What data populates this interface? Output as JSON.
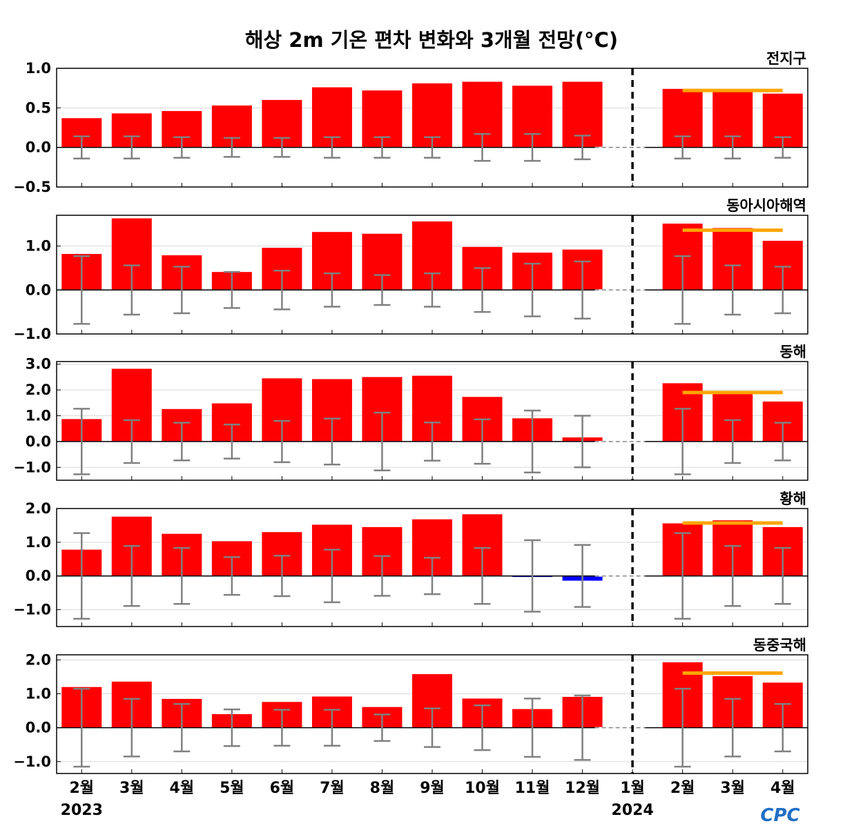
{
  "title": "해상 2m 기온 편차 변화와 3개월 전망(°C)",
  "logo": "CPC",
  "colors": {
    "positive": "#ff0000",
    "negative": "#0000ff",
    "forecast_line": "#ffa500",
    "error_bar": "#808080"
  },
  "chart_data": [
    {
      "type": "bar",
      "title": "전지구",
      "categories": [
        "2월",
        "3월",
        "4월",
        "5월",
        "6월",
        "7월",
        "8월",
        "9월",
        "10월",
        "11월",
        "12월",
        "1월",
        "2월",
        "3월",
        "4월"
      ],
      "values": [
        0.37,
        0.43,
        0.46,
        0.53,
        0.6,
        0.76,
        0.72,
        0.81,
        0.83,
        0.78,
        0.83,
        0.0,
        0.74,
        0.73,
        0.68
      ],
      "error_ranges": [
        0.14,
        0.14,
        0.13,
        0.12,
        0.12,
        0.13,
        0.13,
        0.13,
        0.17,
        0.17,
        0.15,
        0.0,
        0.14,
        0.14,
        0.13
      ],
      "forecast_mean": 0.72,
      "ylim": [
        -0.5,
        1.0
      ],
      "yticks": [
        -0.5,
        0.0,
        0.5,
        1.0
      ],
      "ytick_labels": [
        "−0.5",
        "0.0",
        "0.5",
        "1.0"
      ]
    },
    {
      "type": "bar",
      "title": "동아시아해역",
      "categories": [
        "2월",
        "3월",
        "4월",
        "5월",
        "6월",
        "7월",
        "8월",
        "9월",
        "10월",
        "11월",
        "12월",
        "1월",
        "2월",
        "3월",
        "4월"
      ],
      "values": [
        0.82,
        1.63,
        0.79,
        0.41,
        0.96,
        1.32,
        1.28,
        1.56,
        0.98,
        0.85,
        0.92,
        0.0,
        1.51,
        1.41,
        1.12
      ],
      "error_ranges": [
        0.77,
        0.56,
        0.53,
        0.41,
        0.44,
        0.38,
        0.34,
        0.38,
        0.5,
        0.6,
        0.65,
        0.0,
        0.77,
        0.56,
        0.53
      ],
      "forecast_mean": 1.36,
      "ylim": [
        -1.0,
        1.7
      ],
      "yticks": [
        -1.0,
        0.0,
        1.0
      ],
      "ytick_labels": [
        "−1.0",
        "0.0",
        "1.0"
      ]
    },
    {
      "type": "bar",
      "title": "동해",
      "categories": [
        "2월",
        "3월",
        "4월",
        "5월",
        "6월",
        "7월",
        "8월",
        "9월",
        "10월",
        "11월",
        "12월",
        "1월",
        "2월",
        "3월",
        "4월"
      ],
      "values": [
        0.87,
        2.82,
        1.26,
        1.48,
        2.45,
        2.42,
        2.5,
        2.55,
        1.73,
        0.9,
        0.16,
        0.0,
        2.26,
        1.9,
        1.55
      ],
      "error_ranges": [
        1.27,
        0.83,
        0.73,
        0.66,
        0.8,
        0.89,
        1.12,
        0.74,
        0.86,
        1.2,
        1.0,
        0.0,
        1.27,
        0.83,
        0.73
      ],
      "forecast_mean": 1.9,
      "ylim": [
        -1.5,
        3.1
      ],
      "yticks": [
        -1.0,
        0.0,
        1.0,
        2.0,
        3.0
      ],
      "ytick_labels": [
        "−1.0",
        "0.0",
        "1.0",
        "2.0",
        "3.0"
      ]
    },
    {
      "type": "bar",
      "title": "황해",
      "categories": [
        "2월",
        "3월",
        "4월",
        "5월",
        "6월",
        "7월",
        "8월",
        "9월",
        "10월",
        "11월",
        "12월",
        "1월",
        "2월",
        "3월",
        "4월"
      ],
      "values": [
        0.78,
        1.76,
        1.25,
        1.03,
        1.3,
        1.52,
        1.45,
        1.68,
        1.83,
        -0.03,
        -0.14,
        0.0,
        1.56,
        1.65,
        1.45
      ],
      "error_ranges": [
        1.27,
        0.89,
        0.83,
        0.56,
        0.6,
        0.78,
        0.59,
        0.54,
        0.83,
        1.06,
        0.92,
        0.0,
        1.27,
        0.89,
        0.83
      ],
      "forecast_mean": 1.57,
      "ylim": [
        -1.5,
        2.0
      ],
      "yticks": [
        -1.0,
        0.0,
        1.0,
        2.0
      ],
      "ytick_labels": [
        "−1.0",
        "0.0",
        "1.0",
        "2.0"
      ]
    },
    {
      "type": "bar",
      "title": "동중국해",
      "categories": [
        "2월",
        "3월",
        "4월",
        "5월",
        "6월",
        "7월",
        "8월",
        "9월",
        "10월",
        "11월",
        "12월",
        "1월",
        "2월",
        "3월",
        "4월"
      ],
      "values": [
        1.2,
        1.36,
        0.85,
        0.4,
        0.76,
        0.92,
        0.61,
        1.58,
        0.86,
        0.55,
        0.91,
        0.0,
        1.93,
        1.52,
        1.33
      ],
      "error_ranges": [
        1.15,
        0.85,
        0.7,
        0.54,
        0.53,
        0.53,
        0.39,
        0.57,
        0.66,
        0.86,
        0.95,
        0.0,
        1.15,
        0.85,
        0.7
      ],
      "forecast_mean": 1.61,
      "ylim": [
        -1.35,
        2.15
      ],
      "yticks": [
        -1.0,
        0.0,
        1.0,
        2.0
      ],
      "ytick_labels": [
        "−1.0",
        "0.0",
        "1.0",
        "2.0"
      ]
    }
  ],
  "x_axis": {
    "month_labels": [
      "2월",
      "3월",
      "4월",
      "5월",
      "6월",
      "7월",
      "8월",
      "9월",
      "10월",
      "11월",
      "12월",
      "1월",
      "2월",
      "3월",
      "4월"
    ],
    "year_labels": [
      {
        "label": "2023",
        "index": 0
      },
      {
        "label": "2024",
        "index": 11
      }
    ],
    "divider_index": 11
  }
}
